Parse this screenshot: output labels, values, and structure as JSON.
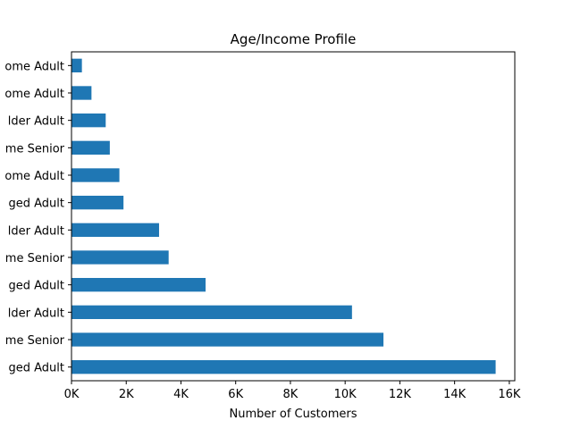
{
  "chart_data": {
    "type": "bar",
    "orientation": "horizontal",
    "title": "Age/Income Profile",
    "xlabel": "Number of Customers",
    "ylabel": "",
    "xlim": [
      0,
      16200
    ],
    "x_ticks": [
      0,
      2000,
      4000,
      6000,
      8000,
      10000,
      12000,
      14000,
      16000
    ],
    "x_tick_labels": [
      "0K",
      "2K",
      "4K",
      "6K",
      "8K",
      "10K",
      "12K",
      "14K",
      "16K"
    ],
    "categories_visible_text": [
      "ome Adult",
      "ome Adult",
      "lder Adult",
      "me Senior",
      "ome Adult",
      "ged Adult",
      "lder Adult",
      "me Senior",
      "ged Adult",
      "lder Adult",
      "me Senior",
      "ged Adult"
    ],
    "values": [
      380,
      730,
      1250,
      1400,
      1750,
      1900,
      3200,
      3550,
      4900,
      10250,
      11400,
      15500
    ],
    "bar_color": "#1f77b4",
    "grid": false,
    "legend": "none"
  }
}
